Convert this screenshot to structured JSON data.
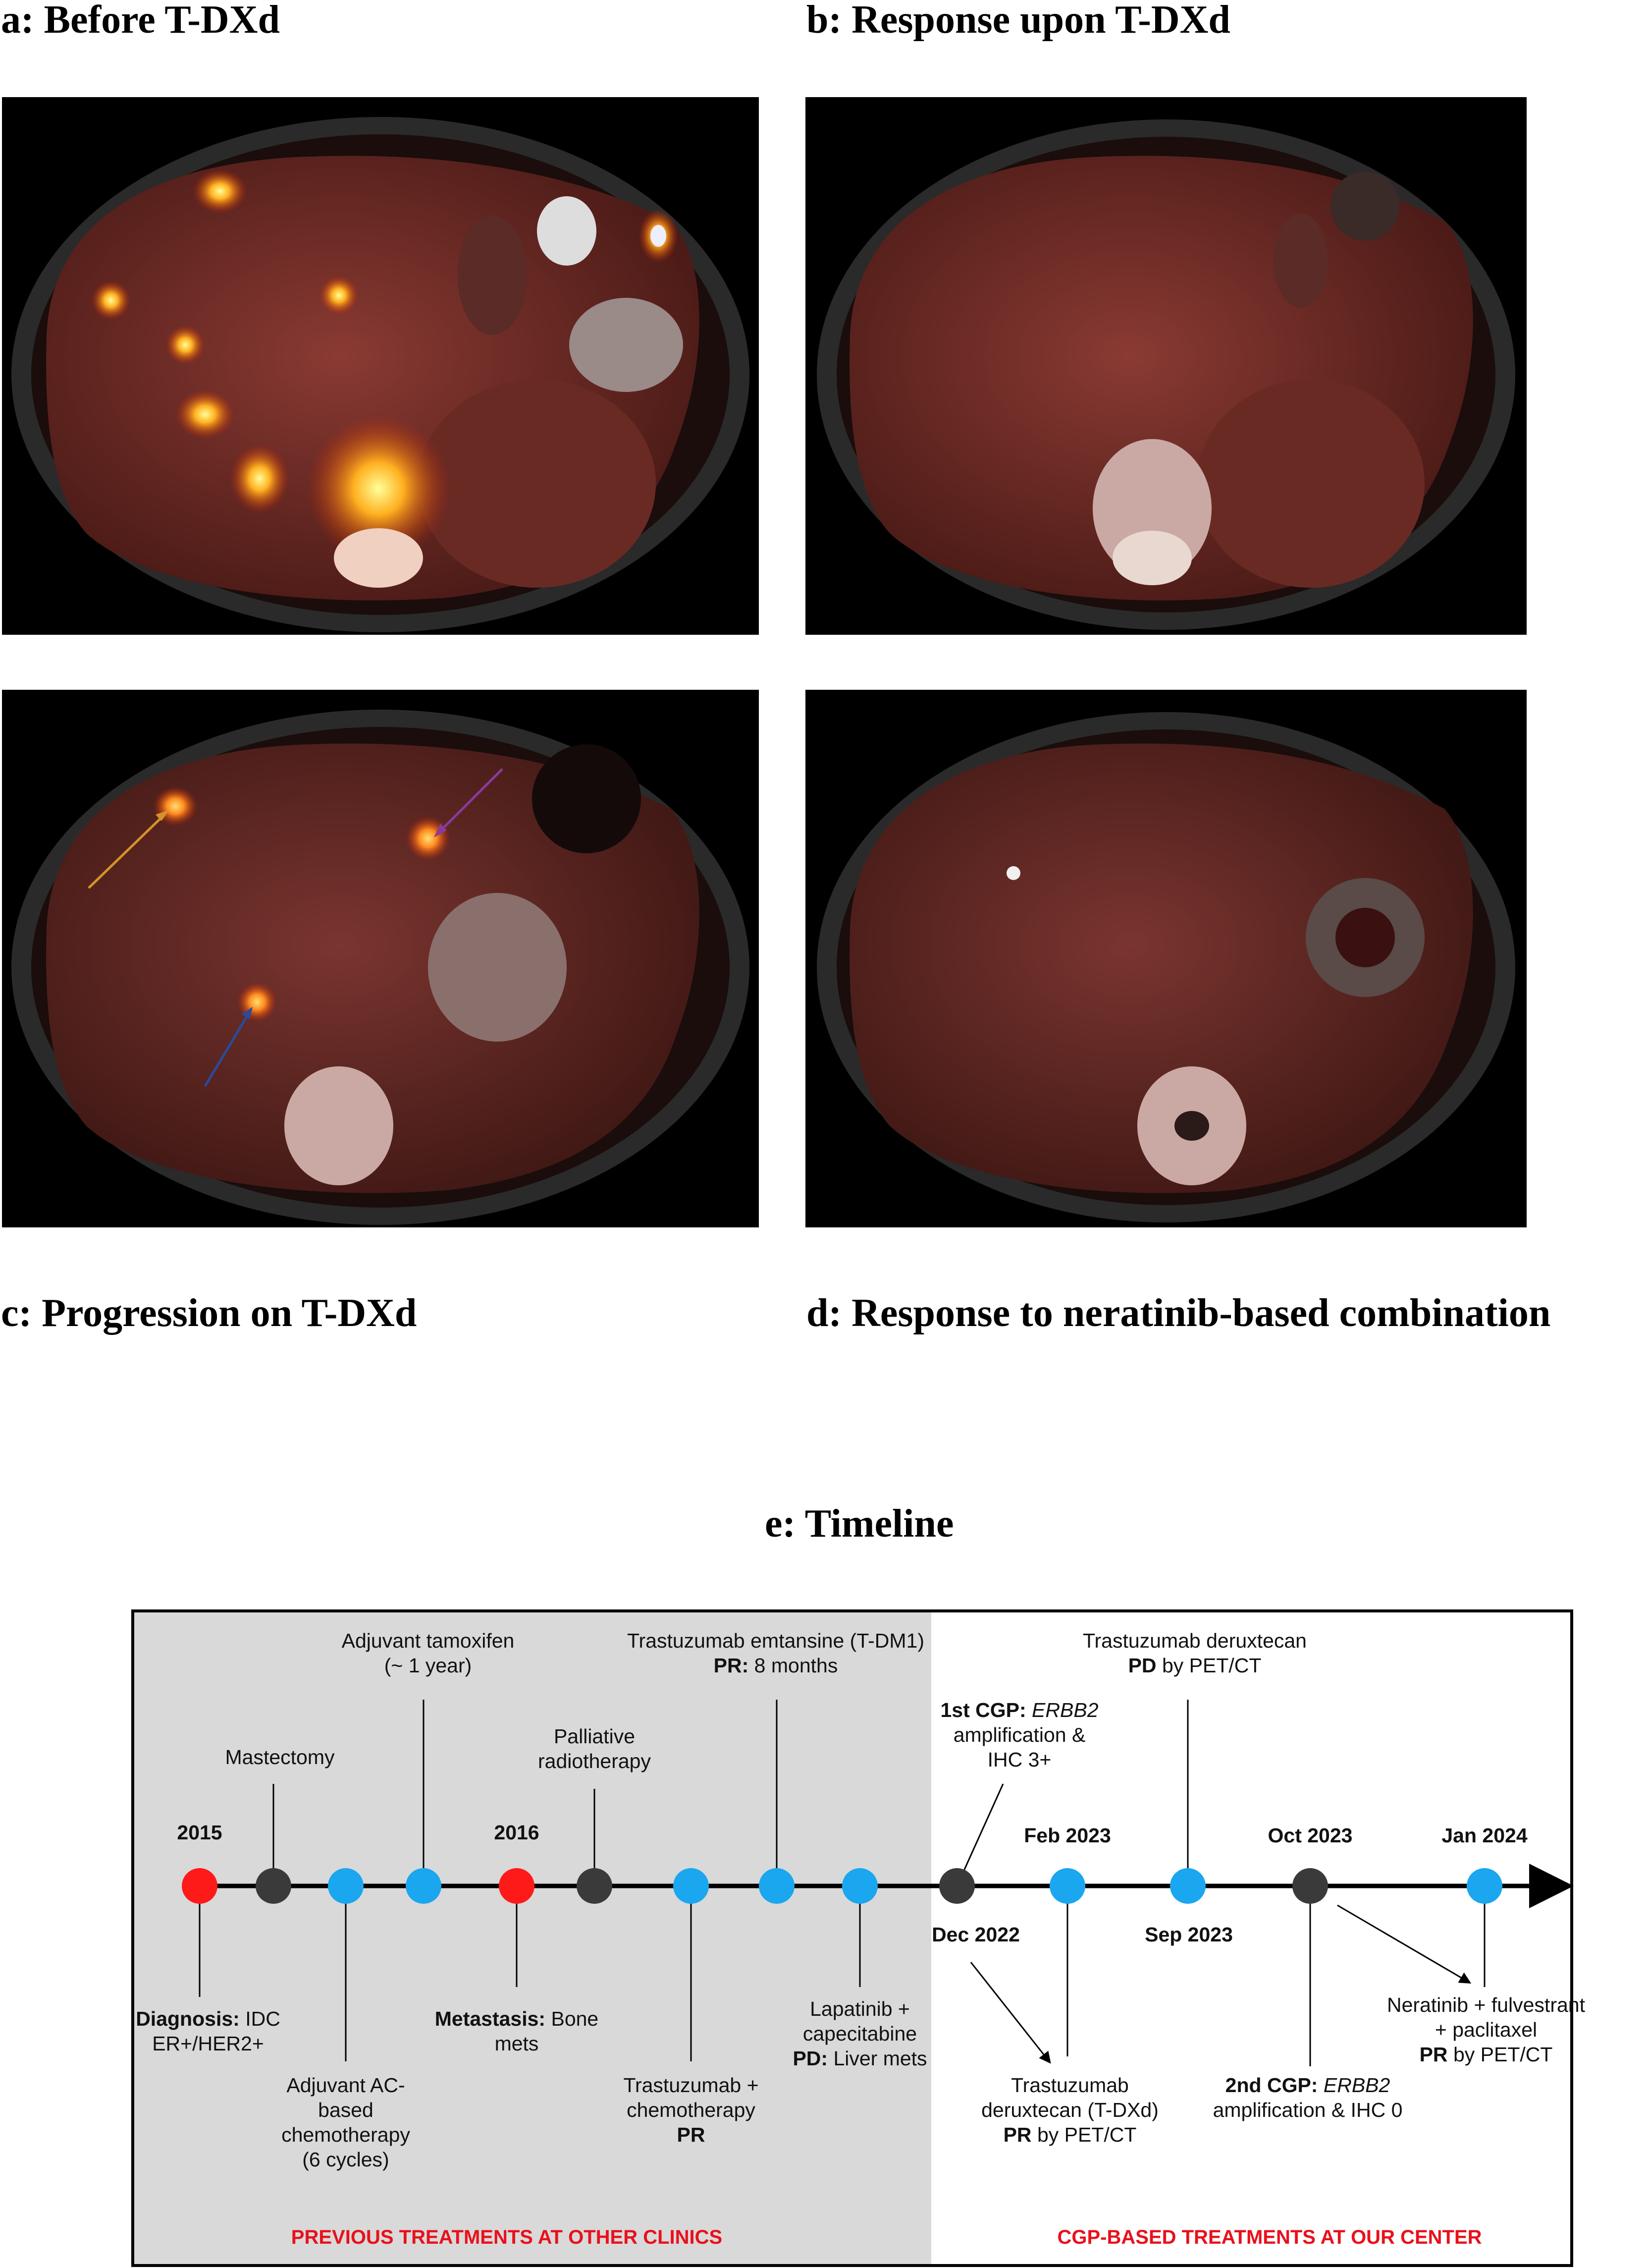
{
  "panels": {
    "a": {
      "title": "a: Before T-DXd"
    },
    "b": {
      "title": "b: Response upon T-DXd"
    },
    "c": {
      "title": "c: Progression on T-DXd"
    },
    "d": {
      "title": "d: Response to neratinib-based combination"
    }
  },
  "timeline": {
    "title": "e: Timeline",
    "colors": {
      "diagnosis": "#ff1a1a",
      "procedure": "#3a3a3a",
      "treatment": "#1aa7ef",
      "shade": "#d9d9d9",
      "section_label": "#e8111c"
    },
    "sections": {
      "previous": "PREVIOUS TREATMENTS AT OTHER CLINICS",
      "current": "CGP-BASED TREATMENTS AT OUR CENTER"
    },
    "dates": {
      "y2015": "2015",
      "y2016": "2016",
      "feb2023": "Feb 2023",
      "oct2023": "Oct 2023",
      "jan2024": "Jan 2024",
      "dec2022": "Dec 2022",
      "sep2023": "Sep 2023"
    },
    "events": {
      "diagnosis": {
        "bold": "Diagnosis:",
        "text": " IDC",
        "line2": "ER+/HER2+"
      },
      "mastectomy": {
        "text": "Mastectomy"
      },
      "adjuvant_ac": {
        "line1": "Adjuvant AC-",
        "line2": "based",
        "line3": "chemotherapy",
        "line4": "(6 cycles)"
      },
      "tamoxifen": {
        "line1": "Adjuvant tamoxifen",
        "line2": "(~ 1 year)"
      },
      "metastasis": {
        "bold": "Metastasis:",
        "text": " Bone",
        "line2": "mets"
      },
      "radiotherapy": {
        "line1": "Palliative",
        "line2": "radiotherapy"
      },
      "trastuzumab_chemo": {
        "line1": "Trastuzumab +",
        "line2": "chemotherapy",
        "line3": "PR"
      },
      "tdm1": {
        "line1": "Trastuzumab emtansine (T-DM1)",
        "bold": "PR:",
        "text": " 8 months"
      },
      "lapatinib": {
        "line1": "Lapatinib +",
        "line2": "capecitabine",
        "bold": "PD:",
        "text": " Liver mets"
      },
      "cgp1": {
        "bold": "1st CGP:",
        "italic": "ERBB2",
        "line2": "amplification &",
        "line3": "IHC 3+"
      },
      "tdxd_start": {
        "line1": "Trastuzumab",
        "line2": "deruxtecan (T-DXd)",
        "bold": "PR",
        "text": " by PET/CT"
      },
      "tdxd_pd": {
        "line1": "Trastuzumab deruxtecan",
        "bold": "PD",
        "text": " by PET/CT"
      },
      "cgp2": {
        "bold": "2nd CGP:",
        "italic": "ERBB2",
        "line2": "amplification & IHC 0"
      },
      "neratinib": {
        "line1": "Neratinib + fulvestrant",
        "line2": "+ paclitaxel",
        "bold": "PR",
        "text": " by PET/CT"
      }
    }
  }
}
